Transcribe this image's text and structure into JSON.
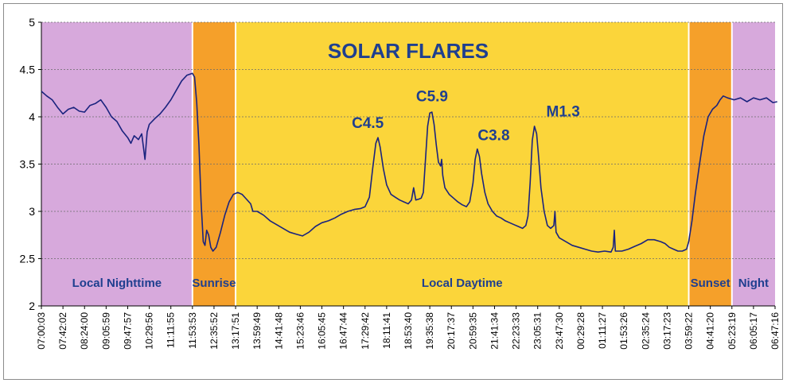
{
  "chart_data": {
    "type": "line",
    "title": "SOLAR FLARES",
    "xlabel": "",
    "ylabel": "",
    "ylim": [
      2,
      5
    ],
    "yticks": [
      2,
      2.5,
      3,
      3.5,
      4,
      4.5,
      5
    ],
    "grid": true,
    "x_tick_labels": [
      "07:00:03",
      "07:42:02",
      "08:24:00",
      "09:05:59",
      "09:47:57",
      "10:29:56",
      "11:11:55",
      "11:53:53",
      "12:35:52",
      "13:17:51",
      "13:59:49",
      "14:41:48",
      "15:23:46",
      "16:05:45",
      "16:47:44",
      "17:29:42",
      "18:11:41",
      "18:53:40",
      "19:35:38",
      "20:17:37",
      "20:59:35",
      "21:41:34",
      "22:23:33",
      "23:05:31",
      "23:47:30",
      "00:29:28",
      "01:11:27",
      "01:53:26",
      "02:35:24",
      "03:17:23",
      "03:59:22",
      "04:41:20",
      "05:23:19",
      "06:05:17",
      "06:47:16"
    ],
    "regions": [
      {
        "label": "Local Nighttime",
        "start": "07:00:03",
        "end": "11:53:53",
        "color": "#d7a9dc"
      },
      {
        "label": "Sunrise",
        "start": "11:53:53",
        "end": "13:17:51",
        "color": "#f5a02a"
      },
      {
        "label": "Local Daytime",
        "start": "13:17:51",
        "end": "03:59:22",
        "color": "#fbd53a"
      },
      {
        "label": "Sunset",
        "start": "03:59:22",
        "end": "05:23:19",
        "color": "#f5a02a"
      },
      {
        "label": "Night",
        "start": "05:23:19",
        "end": "06:47:16",
        "color": "#d7a9dc"
      }
    ],
    "annotations": [
      {
        "text": "C4.5",
        "x": "17:35:00",
        "y": 3.8
      },
      {
        "text": "C5.9",
        "x": "19:40:00",
        "y": 4.08
      },
      {
        "text": "C3.8",
        "x": "21:40:00",
        "y": 3.67
      },
      {
        "text": "M1.3",
        "x": "23:55:00",
        "y": 3.92
      }
    ],
    "series": [
      {
        "color": "#1a237e",
        "points": [
          [
            0.0,
            4.27
          ],
          [
            0.25,
            4.22
          ],
          [
            0.5,
            4.18
          ],
          [
            0.75,
            4.1
          ],
          [
            1.0,
            4.03
          ],
          [
            1.25,
            4.08
          ],
          [
            1.5,
            4.1
          ],
          [
            1.75,
            4.06
          ],
          [
            2.0,
            4.05
          ],
          [
            2.25,
            4.12
          ],
          [
            2.5,
            4.14
          ],
          [
            2.75,
            4.18
          ],
          [
            3.0,
            4.1
          ],
          [
            3.25,
            4.0
          ],
          [
            3.5,
            3.95
          ],
          [
            3.75,
            3.85
          ],
          [
            4.0,
            3.78
          ],
          [
            4.15,
            3.72
          ],
          [
            4.3,
            3.8
          ],
          [
            4.5,
            3.76
          ],
          [
            4.65,
            3.82
          ],
          [
            4.8,
            3.55
          ],
          [
            4.9,
            3.84
          ],
          [
            5.0,
            3.92
          ],
          [
            5.25,
            3.98
          ],
          [
            5.5,
            4.03
          ],
          [
            5.75,
            4.1
          ],
          [
            6.0,
            4.18
          ],
          [
            6.25,
            4.28
          ],
          [
            6.5,
            4.38
          ],
          [
            6.75,
            4.44
          ],
          [
            7.0,
            4.46
          ],
          [
            7.1,
            4.42
          ],
          [
            7.2,
            4.15
          ],
          [
            7.3,
            3.7
          ],
          [
            7.4,
            3.1
          ],
          [
            7.5,
            2.68
          ],
          [
            7.58,
            2.64
          ],
          [
            7.66,
            2.8
          ],
          [
            7.75,
            2.75
          ],
          [
            7.85,
            2.62
          ],
          [
            7.95,
            2.58
          ],
          [
            8.1,
            2.62
          ],
          [
            8.3,
            2.78
          ],
          [
            8.5,
            2.96
          ],
          [
            8.7,
            3.1
          ],
          [
            8.9,
            3.18
          ],
          [
            9.1,
            3.2
          ],
          [
            9.3,
            3.18
          ],
          [
            9.5,
            3.13
          ],
          [
            9.7,
            3.08
          ],
          [
            9.8,
            3.0
          ],
          [
            10.0,
            3.0
          ],
          [
            10.3,
            2.96
          ],
          [
            10.6,
            2.9
          ],
          [
            10.9,
            2.86
          ],
          [
            11.2,
            2.82
          ],
          [
            11.5,
            2.78
          ],
          [
            11.8,
            2.76
          ],
          [
            12.1,
            2.74
          ],
          [
            12.4,
            2.78
          ],
          [
            12.7,
            2.84
          ],
          [
            13.0,
            2.88
          ],
          [
            13.3,
            2.9
          ],
          [
            13.6,
            2.93
          ],
          [
            13.9,
            2.97
          ],
          [
            14.2,
            3.0
          ],
          [
            14.5,
            3.02
          ],
          [
            14.8,
            3.03
          ],
          [
            15.0,
            3.05
          ],
          [
            15.2,
            3.15
          ],
          [
            15.35,
            3.45
          ],
          [
            15.5,
            3.72
          ],
          [
            15.6,
            3.78
          ],
          [
            15.7,
            3.68
          ],
          [
            15.85,
            3.45
          ],
          [
            16.0,
            3.28
          ],
          [
            16.2,
            3.18
          ],
          [
            16.4,
            3.15
          ],
          [
            16.6,
            3.12
          ],
          [
            16.8,
            3.1
          ],
          [
            17.0,
            3.08
          ],
          [
            17.15,
            3.12
          ],
          [
            17.25,
            3.25
          ],
          [
            17.35,
            3.12
          ],
          [
            17.5,
            3.13
          ],
          [
            17.6,
            3.14
          ],
          [
            17.7,
            3.2
          ],
          [
            17.8,
            3.55
          ],
          [
            17.9,
            3.9
          ],
          [
            18.0,
            4.04
          ],
          [
            18.1,
            4.05
          ],
          [
            18.2,
            3.92
          ],
          [
            18.3,
            3.7
          ],
          [
            18.4,
            3.52
          ],
          [
            18.5,
            3.48
          ],
          [
            18.55,
            3.55
          ],
          [
            18.6,
            3.38
          ],
          [
            18.7,
            3.25
          ],
          [
            18.9,
            3.18
          ],
          [
            19.1,
            3.14
          ],
          [
            19.3,
            3.1
          ],
          [
            19.5,
            3.07
          ],
          [
            19.7,
            3.05
          ],
          [
            19.85,
            3.1
          ],
          [
            20.0,
            3.3
          ],
          [
            20.1,
            3.55
          ],
          [
            20.2,
            3.66
          ],
          [
            20.3,
            3.58
          ],
          [
            20.4,
            3.4
          ],
          [
            20.55,
            3.2
          ],
          [
            20.7,
            3.08
          ],
          [
            20.9,
            3.0
          ],
          [
            21.1,
            2.95
          ],
          [
            21.3,
            2.93
          ],
          [
            21.5,
            2.9
          ],
          [
            21.7,
            2.88
          ],
          [
            21.9,
            2.86
          ],
          [
            22.1,
            2.84
          ],
          [
            22.3,
            2.82
          ],
          [
            22.45,
            2.85
          ],
          [
            22.55,
            2.95
          ],
          [
            22.65,
            3.3
          ],
          [
            22.75,
            3.75
          ],
          [
            22.85,
            3.9
          ],
          [
            22.95,
            3.82
          ],
          [
            23.05,
            3.55
          ],
          [
            23.15,
            3.25
          ],
          [
            23.3,
            3.0
          ],
          [
            23.45,
            2.85
          ],
          [
            23.6,
            2.82
          ],
          [
            23.75,
            2.85
          ],
          [
            23.8,
            3.0
          ],
          [
            23.85,
            2.78
          ],
          [
            24.0,
            2.72
          ],
          [
            24.3,
            2.68
          ],
          [
            24.6,
            2.64
          ],
          [
            24.9,
            2.62
          ],
          [
            25.2,
            2.6
          ],
          [
            25.5,
            2.58
          ],
          [
            25.8,
            2.57
          ],
          [
            26.1,
            2.58
          ],
          [
            26.4,
            2.57
          ],
          [
            26.5,
            2.62
          ],
          [
            26.55,
            2.8
          ],
          [
            26.6,
            2.58
          ],
          [
            26.9,
            2.58
          ],
          [
            27.2,
            2.6
          ],
          [
            27.5,
            2.63
          ],
          [
            27.8,
            2.66
          ],
          [
            28.1,
            2.7
          ],
          [
            28.4,
            2.7
          ],
          [
            28.7,
            2.68
          ],
          [
            28.9,
            2.66
          ],
          [
            29.1,
            2.62
          ],
          [
            29.3,
            2.6
          ],
          [
            29.5,
            2.58
          ],
          [
            29.7,
            2.58
          ],
          [
            29.9,
            2.6
          ],
          [
            30.0,
            2.68
          ],
          [
            30.15,
            2.9
          ],
          [
            30.3,
            3.18
          ],
          [
            30.5,
            3.5
          ],
          [
            30.7,
            3.8
          ],
          [
            30.9,
            4.0
          ],
          [
            31.1,
            4.08
          ],
          [
            31.3,
            4.12
          ],
          [
            31.45,
            4.18
          ],
          [
            31.6,
            4.22
          ],
          [
            31.8,
            4.2
          ],
          [
            32.1,
            4.18
          ],
          [
            32.4,
            4.2
          ],
          [
            32.7,
            4.16
          ],
          [
            33.0,
            4.2
          ],
          [
            33.3,
            4.18
          ],
          [
            33.6,
            4.2
          ],
          [
            33.9,
            4.15
          ],
          [
            34.1,
            4.16
          ]
        ]
      }
    ]
  }
}
